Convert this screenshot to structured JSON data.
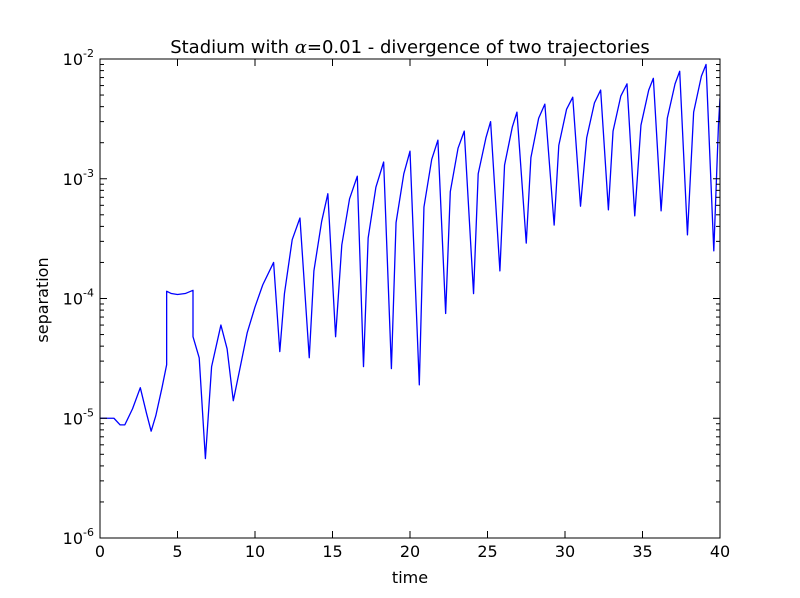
{
  "chart_data": {
    "type": "line",
    "title": "Stadium with α=0.01 - divergence of two trajectories",
    "title_parts": {
      "before": "Stadium with ",
      "symbol": "α",
      "after": "=0.01 - divergence of two trajectories"
    },
    "xlabel": "time",
    "ylabel": "separation",
    "xlim": [
      0,
      40
    ],
    "ylim": [
      1e-06,
      0.01
    ],
    "yscale": "log",
    "grid": false,
    "x_ticks": [
      0,
      5,
      10,
      15,
      20,
      25,
      30,
      35,
      40
    ],
    "x_tick_labels": [
      "0",
      "5",
      "10",
      "15",
      "20",
      "25",
      "30",
      "35",
      "40"
    ],
    "y_ticks": [
      {
        "value": 1e-06,
        "base": "10",
        "exp": "-6"
      },
      {
        "value": 1e-05,
        "base": "10",
        "exp": "-5"
      },
      {
        "value": 0.0001,
        "base": "10",
        "exp": "-4"
      },
      {
        "value": 0.001,
        "base": "10",
        "exp": "-3"
      },
      {
        "value": 0.01,
        "base": "10",
        "exp": "-2"
      }
    ],
    "line_color": "#0000ff",
    "series": [
      {
        "x": [
          0,
          0.9,
          1.3,
          1.6,
          2.1,
          2.6,
          3.0,
          3.3,
          3.6,
          4.0,
          4.3,
          4.3,
          4.6,
          5.0,
          5.5,
          6.0,
          6.0,
          6.4,
          6.8,
          7.2,
          7.8,
          8.2,
          8.6,
          9.0,
          9.5,
          10.0,
          10.5,
          11.2,
          11.6,
          11.9,
          12.4,
          12.9,
          13.5,
          13.8,
          14.3,
          14.7,
          15.2,
          15.6,
          16.1,
          16.6,
          17.0,
          17.3,
          17.8,
          18.3,
          18.8,
          19.1,
          19.6,
          20.0,
          20.6,
          20.9,
          21.4,
          21.8,
          22.3,
          22.6,
          23.1,
          23.5,
          24.1,
          24.4,
          24.9,
          25.2,
          25.8,
          26.1,
          26.6,
          26.9,
          27.5,
          27.8,
          28.3,
          28.7,
          29.3,
          29.6,
          30.1,
          30.5,
          31.0,
          31.4,
          31.9,
          32.3,
          32.8,
          33.1,
          33.6,
          34.0,
          34.5,
          34.9,
          35.4,
          35.7,
          36.2,
          36.6,
          37.1,
          37.4,
          37.9,
          38.3,
          38.8,
          39.1,
          39.6,
          39.9,
          40.0
        ],
        "y": [
          1e-05,
          1e-05,
          8.8e-06,
          8.8e-06,
          1.2e-05,
          1.8e-05,
          1.1e-05,
          7.8e-06,
          1.05e-05,
          1.8e-05,
          2.8e-05,
          0.000115,
          0.00011,
          0.000108,
          0.00011,
          0.000117,
          4.8e-05,
          3.2e-05,
          4.6e-06,
          2.7e-05,
          6e-05,
          3.8e-05,
          1.4e-05,
          2.5e-05,
          5.2e-05,
          8.5e-05,
          0.00013,
          0.0002,
          3.6e-05,
          0.00011,
          0.00031,
          0.00047,
          3.2e-05,
          0.00017,
          0.00044,
          0.00075,
          4.8e-05,
          0.00028,
          0.00068,
          0.00105,
          2.7e-05,
          0.00032,
          0.00085,
          0.00138,
          2.6e-05,
          0.00043,
          0.0011,
          0.0017,
          1.9e-05,
          0.00058,
          0.00145,
          0.0021,
          7.5e-05,
          0.00078,
          0.0018,
          0.0025,
          0.00011,
          0.0011,
          0.0022,
          0.003,
          0.00017,
          0.0013,
          0.0027,
          0.0036,
          0.00029,
          0.0015,
          0.0032,
          0.0042,
          0.00041,
          0.0019,
          0.0038,
          0.0048,
          0.00059,
          0.0022,
          0.0043,
          0.0055,
          0.00055,
          0.0025,
          0.0049,
          0.0062,
          0.00049,
          0.0028,
          0.0055,
          0.0069,
          0.00054,
          0.0032,
          0.0062,
          0.0079,
          0.00034,
          0.0036,
          0.0072,
          0.009,
          0.00025,
          0.0028,
          0.0047
        ]
      }
    ]
  }
}
